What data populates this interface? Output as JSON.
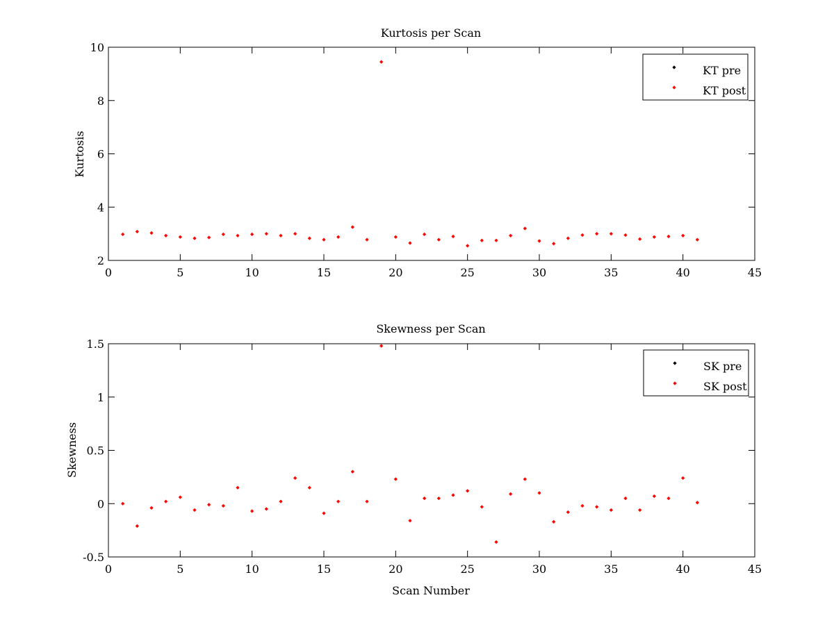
{
  "chart_data": [
    {
      "type": "scatter",
      "title": "Kurtosis per Scan",
      "xlabel": "",
      "ylabel": "Kurtosis",
      "xlim": [
        0,
        45
      ],
      "ylim": [
        2,
        10
      ],
      "xticks": [
        0,
        5,
        10,
        15,
        20,
        25,
        30,
        35,
        40,
        45
      ],
      "yticks": [
        2,
        4,
        6,
        8,
        10
      ],
      "xtick_labels": [
        "0",
        "5",
        "10",
        "15",
        "20",
        "25",
        "30",
        "35",
        "40",
        "45"
      ],
      "ytick_labels": [
        "2",
        "4",
        "6",
        "8",
        "10"
      ],
      "grid": false,
      "legend_position": "top-right",
      "series": [
        {
          "name": "KT pre",
          "color": "#000000",
          "x": [],
          "y": []
        },
        {
          "name": "KT post",
          "color": "#ff0000",
          "x": [
            1,
            2,
            3,
            4,
            5,
            6,
            7,
            8,
            9,
            10,
            11,
            12,
            13,
            14,
            15,
            16,
            17,
            18,
            19,
            20,
            21,
            22,
            23,
            24,
            25,
            26,
            27,
            28,
            29,
            30,
            31,
            32,
            33,
            34,
            35,
            36,
            37,
            38,
            39,
            40,
            41
          ],
          "y": [
            2.98,
            3.08,
            3.03,
            2.93,
            2.88,
            2.83,
            2.86,
            2.98,
            2.93,
            2.98,
            3.0,
            2.93,
            3.0,
            2.83,
            2.78,
            2.88,
            3.25,
            2.78,
            9.45,
            2.88,
            2.65,
            2.98,
            2.78,
            2.9,
            2.55,
            2.75,
            2.75,
            2.93,
            3.2,
            2.73,
            2.63,
            2.83,
            2.95,
            3.0,
            3.0,
            2.95,
            2.8,
            2.88,
            2.9,
            2.93,
            2.78
          ]
        }
      ]
    },
    {
      "type": "scatter",
      "title": "Skewness per Scan",
      "xlabel": "Scan Number",
      "ylabel": "Skewness",
      "xlim": [
        0,
        45
      ],
      "ylim": [
        -0.5,
        1.5
      ],
      "xticks": [
        0,
        5,
        10,
        15,
        20,
        25,
        30,
        35,
        40,
        45
      ],
      "yticks": [
        -0.5,
        0,
        0.5,
        1,
        1.5
      ],
      "xtick_labels": [
        "0",
        "5",
        "10",
        "15",
        "20",
        "25",
        "30",
        "35",
        "40",
        "45"
      ],
      "ytick_labels": [
        "-0.5",
        "0",
        "0.5",
        "1",
        "1.5"
      ],
      "grid": false,
      "legend_position": "top-right",
      "series": [
        {
          "name": "SK pre",
          "color": "#000000",
          "x": [],
          "y": []
        },
        {
          "name": "SK post",
          "color": "#ff0000",
          "x": [
            1,
            2,
            3,
            4,
            5,
            6,
            7,
            8,
            9,
            10,
            11,
            12,
            13,
            14,
            15,
            16,
            17,
            18,
            19,
            20,
            21,
            22,
            23,
            24,
            25,
            26,
            27,
            28,
            29,
            30,
            31,
            32,
            33,
            34,
            35,
            36,
            37,
            38,
            39,
            40,
            41
          ],
          "y": [
            0.0,
            -0.21,
            -0.04,
            0.02,
            0.06,
            -0.06,
            -0.01,
            -0.02,
            0.15,
            -0.07,
            -0.05,
            0.02,
            0.24,
            0.15,
            -0.09,
            0.02,
            0.3,
            0.02,
            1.48,
            0.23,
            -0.16,
            0.05,
            0.05,
            0.08,
            0.12,
            -0.03,
            -0.36,
            0.09,
            0.23,
            0.1,
            -0.17,
            -0.08,
            -0.02,
            -0.03,
            -0.06,
            0.05,
            -0.06,
            0.07,
            0.05,
            0.24,
            0.01
          ]
        }
      ]
    }
  ]
}
